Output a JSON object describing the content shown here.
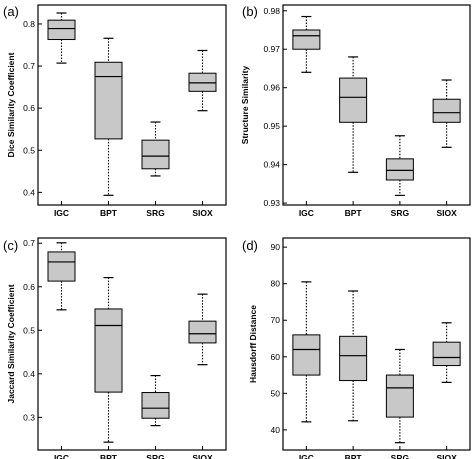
{
  "chart_data": [
    {
      "type": "boxplot",
      "panel_label": "(a)",
      "ylabel": "Dice Similarity Coefficient",
      "ylim": [
        0.37,
        0.845
      ],
      "yticks": [
        0.4,
        0.5,
        0.6,
        0.7,
        0.8
      ],
      "ytick_labels": [
        "0.4",
        "0.5",
        "0.6",
        "0.7",
        "0.8"
      ],
      "categories": [
        "IGC",
        "BPT",
        "SRG",
        "SIOX"
      ],
      "boxes": [
        {
          "min": 0.707,
          "q1": 0.763,
          "median": 0.789,
          "q3": 0.809,
          "max": 0.826
        },
        {
          "min": 0.393,
          "q1": 0.527,
          "median": 0.675,
          "q3": 0.709,
          "max": 0.766
        },
        {
          "min": 0.439,
          "q1": 0.456,
          "median": 0.486,
          "q3": 0.524,
          "max": 0.567
        },
        {
          "min": 0.594,
          "q1": 0.64,
          "median": 0.66,
          "q3": 0.683,
          "max": 0.737
        }
      ]
    },
    {
      "type": "boxplot",
      "panel_label": "(b)",
      "ylabel": "Structure Similarity",
      "ylim": [
        0.9295,
        0.9815
      ],
      "yticks": [
        0.93,
        0.94,
        0.95,
        0.96,
        0.97,
        0.98
      ],
      "ytick_labels": [
        "0.93",
        "0.94",
        "0.95",
        "0.96",
        "0.97",
        "0.98"
      ],
      "categories": [
        "IGC",
        "BPT",
        "SRG",
        "SIOX"
      ],
      "boxes": [
        {
          "min": 0.964,
          "q1": 0.97,
          "median": 0.9735,
          "q3": 0.975,
          "max": 0.9785
        },
        {
          "min": 0.938,
          "q1": 0.951,
          "median": 0.9575,
          "q3": 0.9625,
          "max": 0.968
        },
        {
          "min": 0.932,
          "q1": 0.936,
          "median": 0.9385,
          "q3": 0.9415,
          "max": 0.9475
        },
        {
          "min": 0.9445,
          "q1": 0.951,
          "median": 0.9535,
          "q3": 0.957,
          "max": 0.962
        }
      ]
    },
    {
      "type": "boxplot",
      "panel_label": "(c)",
      "ylabel": "Jaccard Similarity Coefficient",
      "ylim": [
        0.225,
        0.712
      ],
      "yticks": [
        0.3,
        0.4,
        0.5,
        0.6,
        0.7
      ],
      "ytick_labels": [
        "0.3",
        "0.4",
        "0.5",
        "0.6",
        "0.7"
      ],
      "categories": [
        "IGC",
        "BPT",
        "SRG",
        "SIOX"
      ],
      "boxes": [
        {
          "min": 0.547,
          "q1": 0.613,
          "median": 0.657,
          "q3": 0.68,
          "max": 0.701
        },
        {
          "min": 0.243,
          "q1": 0.358,
          "median": 0.511,
          "q3": 0.549,
          "max": 0.621
        },
        {
          "min": 0.281,
          "q1": 0.298,
          "median": 0.321,
          "q3": 0.357,
          "max": 0.396
        },
        {
          "min": 0.421,
          "q1": 0.471,
          "median": 0.492,
          "q3": 0.521,
          "max": 0.583
        }
      ]
    },
    {
      "type": "boxplot",
      "panel_label": "(d)",
      "ylabel": "Hausdorff Distance",
      "ylim": [
        34.5,
        92.5
      ],
      "yticks": [
        40,
        50,
        60,
        70,
        80,
        90
      ],
      "ytick_labels": [
        "40",
        "50",
        "60",
        "70",
        "80",
        "90"
      ],
      "categories": [
        "IGC",
        "BPT",
        "SRG",
        "SIOX"
      ],
      "boxes": [
        {
          "min": 42.2,
          "q1": 55.0,
          "median": 62.0,
          "q3": 66.0,
          "max": 80.5
        },
        {
          "min": 42.5,
          "q1": 53.5,
          "median": 60.3,
          "q3": 65.6,
          "max": 78.0
        },
        {
          "min": 36.5,
          "q1": 43.5,
          "median": 51.5,
          "q3": 55.0,
          "max": 62.0
        },
        {
          "min": 53.0,
          "q1": 57.6,
          "median": 59.8,
          "q3": 64.0,
          "max": 69.3
        }
      ]
    }
  ],
  "colors": {
    "box_fill": "#c8c8c8",
    "line": "#000000",
    "background": "#ffffff"
  }
}
